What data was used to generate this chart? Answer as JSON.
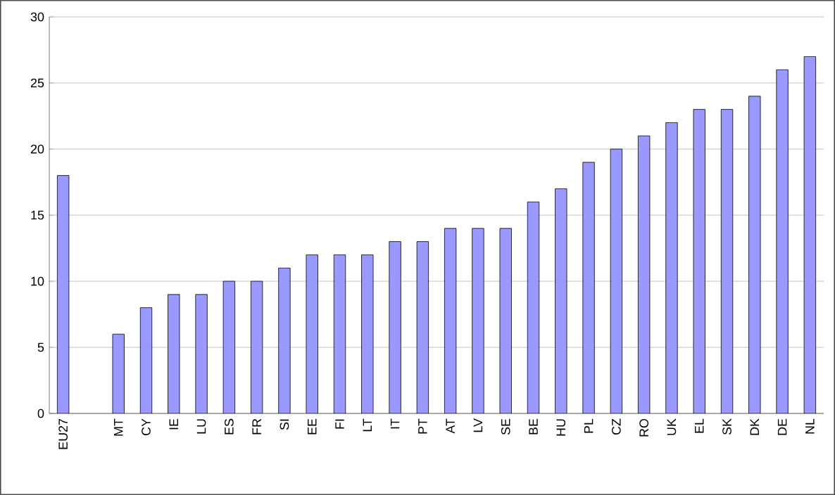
{
  "chart_data": {
    "type": "bar",
    "categories": [
      "EU27",
      null,
      "MT",
      "CY",
      "IE",
      "LU",
      "ES",
      "FR",
      "SI",
      "EE",
      "FI",
      "LT",
      "IT",
      "PT",
      "AT",
      "LV",
      "SE",
      "BE",
      "HU",
      "PL",
      "CZ",
      "RO",
      "UK",
      "EL",
      "SK",
      "DK",
      "DE",
      "NL"
    ],
    "values": [
      18,
      null,
      6,
      8,
      9,
      9,
      10,
      10,
      11,
      12,
      12,
      12,
      13,
      13,
      14,
      14,
      14,
      16,
      17,
      19,
      20,
      21,
      22,
      23,
      23,
      24,
      26,
      27
    ],
    "color": "#9999ff",
    "ylim": [
      0,
      30
    ],
    "yticks": [
      0,
      5,
      10,
      15,
      20,
      25,
      30
    ],
    "grid": "y"
  }
}
